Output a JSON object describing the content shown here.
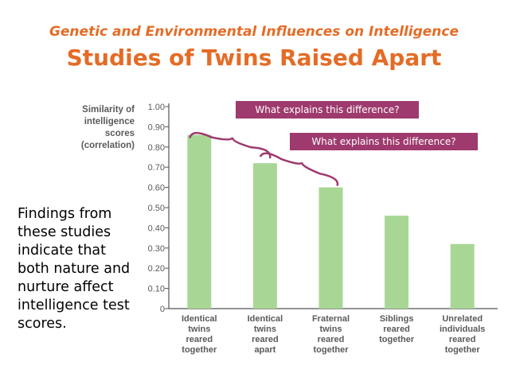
{
  "colors": {
    "title": "#E46C26",
    "bar": "#A8D795",
    "callout": "#9E3A6E",
    "axis": "#555555"
  },
  "header": {
    "subtitle": "Genetic and Environmental Influences on Intelligence",
    "title": "Studies of Twins Raised Apart"
  },
  "body_text": "Findings from these studies indicate that both nature and nurture affect intelligence test scores.",
  "callouts": [
    "What explains this difference?",
    "What explains this difference?"
  ],
  "chart_data": {
    "type": "bar",
    "categories": [
      [
        "Identical",
        "twins",
        "reared",
        "together"
      ],
      [
        "Identical",
        "twins",
        "reared",
        "apart"
      ],
      [
        "Fraternal",
        "twins",
        "reared",
        "together"
      ],
      [
        "Siblings",
        "reared",
        "together"
      ],
      [
        "Unrelated",
        "individuals",
        "reared",
        "together"
      ]
    ],
    "values": [
      0.86,
      0.72,
      0.6,
      0.46,
      0.32
    ],
    "ylabel": [
      "Similarity of",
      "intelligence",
      "scores",
      "(correlation)"
    ],
    "ylim": [
      0,
      1.0
    ],
    "yticks": [
      "0",
      "0.10",
      "0.20",
      "0.30",
      "0.40",
      "0.50",
      "0.60",
      "0.70",
      "0.80",
      "0.90",
      "1.00"
    ],
    "grid": false
  }
}
